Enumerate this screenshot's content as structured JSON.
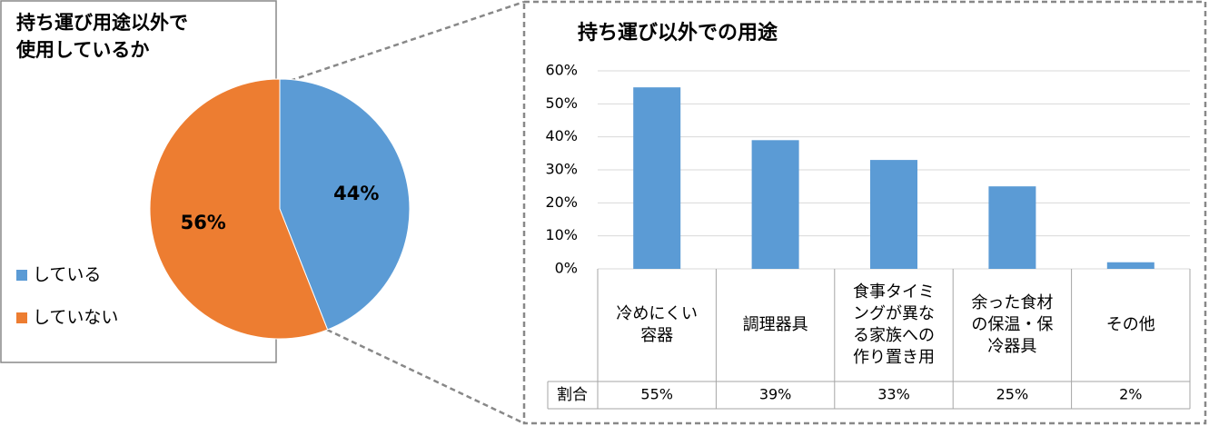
{
  "chart_data": [
    {
      "type": "pie",
      "title": "持ち運び用途以外で使用しているか",
      "categories": [
        "している",
        "していない"
      ],
      "values": [
        44,
        56
      ],
      "value_labels": [
        "44%",
        "56%"
      ],
      "colors": [
        "#5b9bd5",
        "#ed7d31"
      ],
      "legend": "left"
    },
    {
      "type": "bar",
      "title": "持ち運び以外での用途",
      "categories": [
        "冷めにくい容器",
        "調理器具",
        "食事タイミングが異なる家族への作り置き用",
        "余った食材の保温・保冷器具",
        "その他"
      ],
      "series": [
        {
          "name": "割合",
          "color": "#5b9bd5",
          "values": [
            55,
            39,
            33,
            25,
            2
          ],
          "value_labels": [
            "55%",
            "39%",
            "33%",
            "25%",
            "2%"
          ]
        }
      ],
      "ylim": [
        0,
        60
      ],
      "yticks": [
        {
          "value": 0,
          "label": "0%"
        },
        {
          "value": 10,
          "label": "10%"
        },
        {
          "value": 20,
          "label": "20%"
        },
        {
          "value": 30,
          "label": "30%"
        },
        {
          "value": 40,
          "label": "40%"
        },
        {
          "value": 50,
          "label": "50%"
        },
        {
          "value": 60,
          "label": "60%"
        }
      ],
      "grid": true,
      "data_table": true
    }
  ]
}
